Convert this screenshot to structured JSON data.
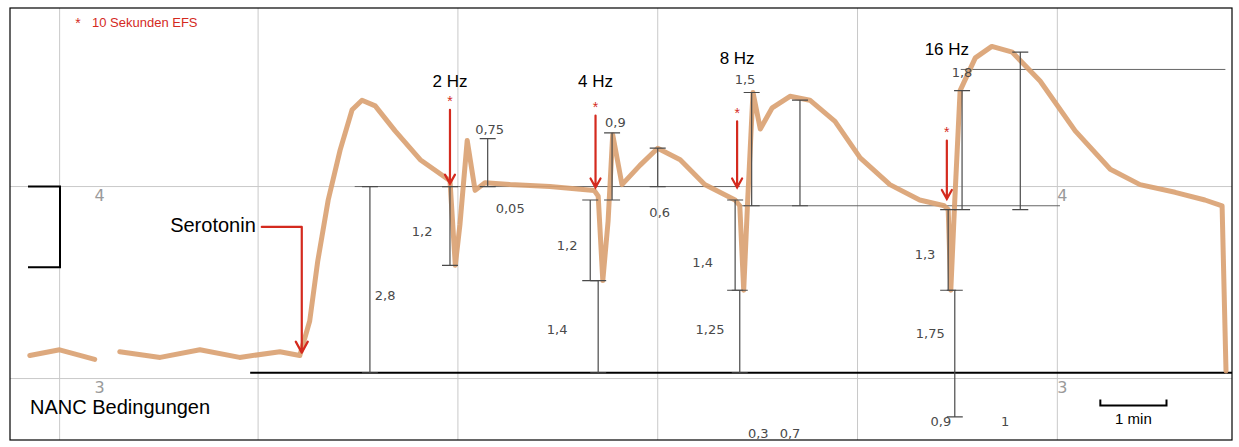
{
  "chart_data": {
    "type": "line",
    "key": {
      "symbol": "*",
      "text": "10 Sekunden EFS"
    },
    "x": [
      0.03,
      0.48,
      1.01,
      1.2,
      1.39,
      2.0,
      2.6,
      3.2,
      3.81,
      4.11,
      4.26,
      4.38,
      4.54,
      4.72,
      4.9,
      5.05,
      5.25,
      5.55,
      5.93,
      6.3,
      6.38,
      6.46,
      6.53,
      6.64,
      6.76,
      6.91,
      7.29,
      7.89,
      8.56,
      8.62,
      8.69,
      8.77,
      8.84,
      8.98,
      9.25,
      9.52,
      9.86,
      10.23,
      10.69,
      10.76,
      10.82,
      10.88,
      10.96,
      11.07,
      11.25,
      11.52,
      11.82,
      12.2,
      12.58,
      13.03,
      13.48,
      13.85,
      13.91,
      13.95,
      14.01,
      14.09,
      14.32,
      14.57,
      14.88,
      15.3,
      15.83,
      16.36,
      16.81,
      17.34,
      17.79,
      18.05,
      18.11
    ],
    "values": [
      3.12,
      3.15,
      3.1,
      null,
      3.14,
      3.11,
      3.15,
      3.11,
      3.14,
      3.12,
      3.3,
      3.61,
      3.93,
      4.19,
      4.4,
      4.45,
      4.42,
      4.29,
      4.14,
      4.05,
      4.03,
      3.59,
      3.8,
      4.24,
      3.98,
      4.02,
      4.01,
      4.0,
      3.98,
      3.95,
      3.51,
      3.82,
      4.27,
      4.01,
      4.11,
      4.2,
      4.14,
      4.01,
      3.93,
      3.9,
      3.46,
      3.93,
      4.49,
      4.3,
      4.41,
      4.47,
      4.45,
      4.34,
      4.15,
      4.01,
      3.93,
      3.9,
      3.88,
      3.46,
      3.93,
      4.5,
      4.67,
      4.73,
      4.7,
      4.55,
      4.29,
      4.09,
      4.01,
      3.97,
      3.93,
      3.9,
      3.04
    ],
    "color": "#d9a070",
    "xlim": [
      -0.27,
      18.2
    ],
    "ylim": [
      2.68,
      4.93
    ],
    "xticks": [
      0.48,
      3.48,
      6.5,
      9.52,
      12.54,
      15.56
    ],
    "yticks": [
      3,
      4
    ],
    "grid": true,
    "tick_labels": "y",
    "drug": {
      "label": "Serotonin",
      "x": 4.14,
      "y_from": 3.79,
      "y_to": 3.13
    },
    "condition": {
      "label": "NANC Bedingungen",
      "y": 3.03,
      "x_from": 3.36,
      "x_to": 18.2
    },
    "stimuli": [
      {
        "label": "2 Hz",
        "symbol": "*",
        "x": 6.38,
        "y_from": 4.4,
        "y_to": 4.01,
        "label_y": 4.54
      },
      {
        "label": "4 Hz",
        "symbol": "*",
        "x": 8.58,
        "y_from": 4.37,
        "y_to": 3.99,
        "label_y": 4.54
      },
      {
        "label": "8 Hz",
        "symbol": "*",
        "x": 10.72,
        "y_from": 4.34,
        "y_to": 3.99,
        "label_y": 4.66
      },
      {
        "label": "16 Hz",
        "symbol": "*",
        "x": 13.89,
        "y_from": 4.24,
        "y_to": 3.93,
        "label_y": 4.71
      }
    ],
    "measurements": [
      {
        "x": 5.17,
        "y_from": 4.0,
        "y_to": 3.03
      },
      {
        "x": 6.38,
        "y_from": 4.0,
        "y_to": 3.59
      },
      {
        "x": 6.95,
        "y_from": 4.25,
        "y_to": 4.0
      },
      {
        "x": 8.5,
        "y_from": 3.93,
        "y_to": 3.51
      },
      {
        "x": 8.62,
        "y_from": 3.51,
        "y_to": 3.03
      },
      {
        "x": 8.83,
        "y_from": 4.28,
        "y_to": 3.93
      },
      {
        "x": 9.52,
        "y_from": 4.2,
        "y_to": 4.0
      },
      {
        "x": 10.69,
        "y_from": 3.93,
        "y_to": 3.46
      },
      {
        "x": 10.76,
        "y_from": 3.46,
        "y_to": 3.03
      },
      {
        "x": 10.94,
        "y_from": 4.49,
        "y_to": 3.9
      },
      {
        "x": 11.67,
        "y_from": 4.45,
        "y_to": 3.9
      },
      {
        "x": 13.91,
        "y_from": 3.88,
        "y_to": 3.46
      },
      {
        "x": 14.01,
        "y_from": 3.46,
        "y_to": 2.8
      },
      {
        "x": 14.12,
        "y_from": 4.5,
        "y_to": 3.88
      },
      {
        "x": 15.0,
        "y_from": 4.7,
        "y_to": 3.88
      }
    ],
    "reference_lines": [
      {
        "y": 4.0,
        "x_from": 4.94,
        "x_to": 10.76
      },
      {
        "y": 3.9,
        "x_from": 10.76,
        "x_to": 15.6
      },
      {
        "y": 4.61,
        "x_from": 14.1,
        "x_to": 18.1
      }
    ],
    "annotations": [
      {
        "text": "2,8",
        "x": 5.4,
        "y": 3.43
      },
      {
        "text": "1,2",
        "x": 5.96,
        "y": 3.76
      },
      {
        "text": "0,75",
        "x": 6.98,
        "y": 4.29
      },
      {
        "text": "0,05",
        "x": 7.29,
        "y": 3.88
      },
      {
        "text": "1,2",
        "x": 8.15,
        "y": 3.69
      },
      {
        "text": "1,4",
        "x": 8.0,
        "y": 3.25
      },
      {
        "text": "0,9",
        "x": 8.88,
        "y": 4.33
      },
      {
        "text": "0,6",
        "x": 9.55,
        "y": 3.86
      },
      {
        "text": "1,4",
        "x": 10.2,
        "y": 3.6
      },
      {
        "text": "1,25",
        "x": 10.31,
        "y": 3.25
      },
      {
        "text": "1,5",
        "x": 10.84,
        "y": 4.55
      },
      {
        "text": "1,3",
        "x": 13.56,
        "y": 3.64
      },
      {
        "text": "1,75",
        "x": 13.64,
        "y": 3.23
      },
      {
        "text": "1,8",
        "x": 14.12,
        "y": 4.59
      },
      {
        "text": "0,9",
        "x": 13.8,
        "y": 2.77
      },
      {
        "text": "1",
        "x": 14.77,
        "y": 2.77
      },
      {
        "text": "0,3",
        "x": 11.04,
        "y": 2.71
      },
      {
        "text": "0,7",
        "x": 11.52,
        "y": 2.71
      }
    ],
    "scale_bar": {
      "label": "1 min",
      "x": 16.21,
      "y": 2.86,
      "length": 1
    }
  }
}
